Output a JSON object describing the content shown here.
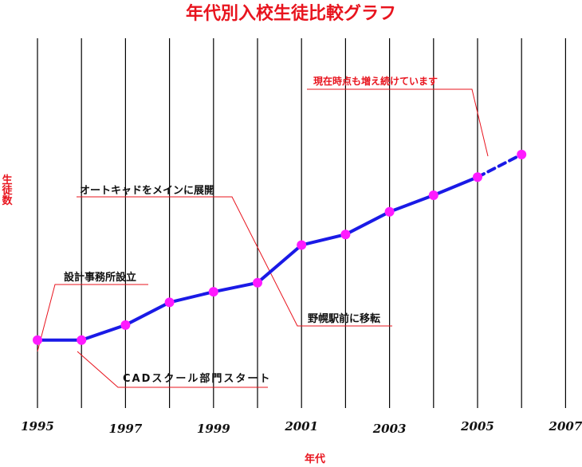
{
  "chart_data": {
    "type": "line",
    "title": "年代別入校生徒比較グラフ",
    "xlabel": "年代",
    "ylabel": "生徒数",
    "x_ticks": [
      "1995",
      "1997",
      "1999",
      "2001",
      "2003",
      "2005",
      "2007"
    ],
    "x_range": [
      1995,
      2007
    ],
    "grid": "vertical",
    "series": [
      {
        "x": [
          1995,
          1996,
          1997,
          1998,
          1999,
          2000,
          2001,
          2002,
          2003,
          2004,
          2005
        ],
        "values": [
          0,
          0,
          10,
          25,
          32,
          38,
          63,
          70,
          85,
          96,
          108
        ],
        "style": "solid"
      },
      {
        "x": [
          2005,
          2006
        ],
        "values": [
          108,
          123
        ],
        "style": "dashed"
      }
    ],
    "y_range": [
      -45,
      200
    ],
    "colors": {
      "line": "#1a1ae6",
      "marker": "#ff1aff",
      "title": "#e8141e",
      "annotation_line": "#e8141e",
      "gridline": "#000000"
    },
    "annotations": [
      {
        "text": "設計事務所設立",
        "x": 1995,
        "value": 0,
        "color": "black"
      },
      {
        "text": "CADスクール部門スタート",
        "x": 1996,
        "value": 0,
        "color": "black"
      },
      {
        "text": "オートキャドをメインに展開",
        "x": 2000.3,
        "value": 45,
        "color": "black"
      },
      {
        "text": "野幌駅前に移転",
        "x": 2000.3,
        "value": 45,
        "color": "black"
      },
      {
        "text": "現在時点も増え続けています",
        "x": 2005.2,
        "value": 110,
        "color": "red"
      }
    ]
  }
}
